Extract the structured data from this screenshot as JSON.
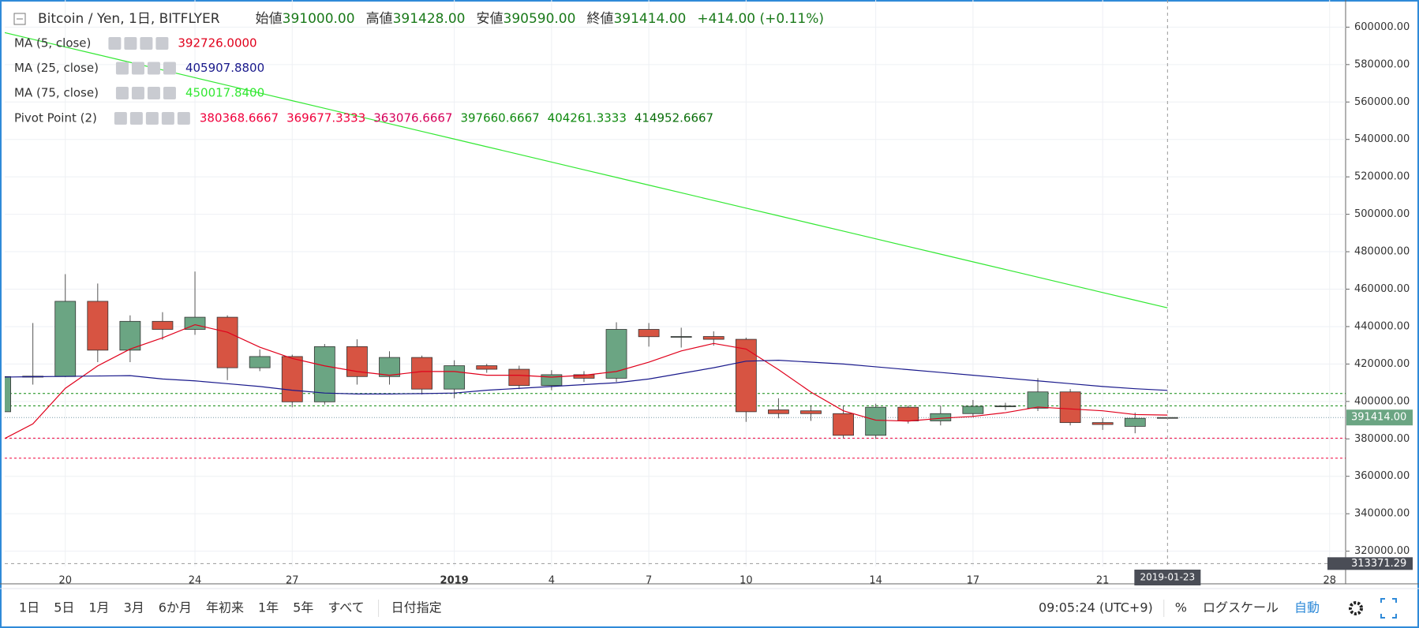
{
  "header": {
    "symbol": "Bitcoin / Yen, 1日, BITFLYER",
    "ohlc": [
      {
        "label": "始値",
        "value": "391000.00"
      },
      {
        "label": "高値",
        "value": "391428.00"
      },
      {
        "label": "安値",
        "value": "390590.00"
      },
      {
        "label": "終値",
        "value": "391414.00"
      }
    ],
    "change": "+414.00 (+0.11%)"
  },
  "indicators": [
    {
      "name": "MA (5, close)",
      "value": "392726.0000",
      "color": "#e0001b"
    },
    {
      "name": "MA (25, close)",
      "value": "405907.8800",
      "color": "#1a1a8c"
    },
    {
      "name": "MA (75, close)",
      "value": "450017.8400",
      "color": "#33e833"
    }
  ],
  "chart_data": {
    "type": "candlestick",
    "categories": [
      null,
      null,
      "20",
      null,
      null,
      null,
      "24",
      null,
      null,
      "27",
      null,
      null,
      null,
      null,
      "2019",
      null,
      null,
      "4",
      null,
      null,
      "7",
      null,
      null,
      "10",
      null,
      null,
      null,
      "14",
      null,
      null,
      "17",
      null,
      null,
      null,
      "21",
      null,
      null,
      null,
      null,
      null,
      null,
      "28"
    ],
    "open": [
      394500,
      413000,
      413300,
      453500,
      427400,
      442800,
      438500,
      445000,
      418000,
      424000,
      399800,
      429300,
      413300,
      423500,
      406600,
      419100,
      417200,
      408500,
      414300,
      412400,
      438500,
      434600,
      434700,
      433200,
      395500,
      395000,
      393500,
      381900,
      396900,
      389600,
      393500,
      397400,
      396400,
      405100,
      388700,
      386700,
      391000,
      null,
      null,
      null,
      null,
      null
    ],
    "high": [
      418000,
      441900,
      468000,
      463000,
      446000,
      447700,
      469400,
      446000,
      427800,
      425000,
      430700,
      433200,
      426800,
      424500,
      422000,
      420100,
      419100,
      416700,
      416200,
      442300,
      441900,
      439400,
      437500,
      434100,
      401700,
      397900,
      397900,
      398800,
      397900,
      397900,
      400800,
      399300,
      412400,
      406600,
      391100,
      394000,
      391428,
      null,
      null,
      null,
      null,
      null
    ],
    "low": [
      390000,
      409000,
      413000,
      421000,
      421000,
      433000,
      435600,
      411400,
      416200,
      396900,
      398300,
      409000,
      409000,
      403700,
      401700,
      415300,
      406600,
      406000,
      410400,
      410400,
      429300,
      428800,
      429800,
      389100,
      391000,
      389600,
      380400,
      380000,
      388200,
      387200,
      391600,
      395400,
      394900,
      387200,
      384800,
      383000,
      390590,
      null,
      null,
      null,
      null,
      null
    ],
    "close": [
      413300,
      413500,
      453500,
      427400,
      442800,
      438500,
      445000,
      418000,
      424000,
      399800,
      429300,
      413300,
      423500,
      406600,
      419100,
      417200,
      408500,
      414300,
      412400,
      438500,
      434600,
      434700,
      433200,
      394500,
      393500,
      393500,
      381900,
      396900,
      389600,
      393500,
      397400,
      397600,
      405100,
      388700,
      387700,
      391000,
      391414,
      null,
      null,
      null,
      null,
      null
    ],
    "up_color": "#6ba583",
    "down_color": "#d75442",
    "series": [
      {
        "name": "MA (5, close)",
        "color": "#e0001b",
        "values": [
          379000,
          388000,
          407000,
          419000,
          428000,
          434000,
          441000,
          437000,
          429000,
          423000,
          419000,
          416000,
          414000,
          416000,
          416000,
          414000,
          414000,
          413000,
          414000,
          416000,
          421000,
          427000,
          431000,
          428000,
          417000,
          405000,
          395000,
          390000,
          389500,
          391000,
          392000,
          394000,
          397000,
          396000,
          395000,
          393000,
          392726,
          null,
          null,
          null,
          null,
          null
        ]
      },
      {
        "name": "MA (25, close)",
        "color": "#1a1a8c",
        "values": [
          413000,
          413200,
          413400,
          413600,
          413800,
          412000,
          411000,
          409500,
          408000,
          406000,
          404500,
          404000,
          404000,
          404200,
          404500,
          406000,
          407000,
          408000,
          409000,
          410000,
          412000,
          415000,
          418000,
          421500,
          422000,
          421000,
          420000,
          418500,
          417000,
          415500,
          414000,
          412500,
          411000,
          409500,
          408000,
          406800,
          405907.88,
          null,
          null,
          null,
          null,
          null
        ]
      },
      {
        "name": "MA (75, close)",
        "color": "#33e833",
        "values": [
          597600,
          593500,
          589400,
          585300,
          581200,
          577100,
          573000,
          568900,
          564800,
          560700,
          556600,
          552500,
          548400,
          544300,
          540200,
          536100,
          532000,
          527900,
          523800,
          519700,
          515600,
          511500,
          507400,
          503300,
          499200,
          495100,
          491000,
          486900,
          482800,
          478700,
          474600,
          470500,
          466400,
          462300,
          458200,
          454100,
          450017.84,
          null,
          null,
          null,
          null,
          null
        ]
      }
    ],
    "pivot": {
      "name": "Pivot Point (2)",
      "levels": [
        {
          "value": 380368.6667,
          "color": "#f0003c",
          "line": true
        },
        {
          "value": 369677.3333,
          "color": "#f0003c",
          "line": true
        },
        {
          "value": 363076.6667,
          "color": "#d6005a",
          "line": false
        },
        {
          "value": 397660.6667,
          "color": "#0f8a0f",
          "line": true
        },
        {
          "value": 404261.3333,
          "color": "#0f8a0f",
          "line": true
        },
        {
          "value": 414952.6667,
          "color": "#0a6e0a",
          "line": false
        }
      ]
    },
    "ylim": [
      312250,
      614500
    ],
    "yticks": [
      {
        "value": 320000,
        "label": "320000.00"
      },
      {
        "value": 340000,
        "label": "340000.00"
      },
      {
        "value": 360000,
        "label": "360000.00"
      },
      {
        "value": 380000,
        "label": "380000.00"
      },
      {
        "value": 400000,
        "label": "400000.00"
      },
      {
        "value": 420000,
        "label": "420000.00"
      },
      {
        "value": 440000,
        "label": "440000.00"
      },
      {
        "value": 460000,
        "label": "460000.00"
      },
      {
        "value": 480000,
        "label": "480000.00"
      },
      {
        "value": 500000,
        "label": "500000.00"
      },
      {
        "value": 520000,
        "label": "520000.00"
      },
      {
        "value": 540000,
        "label": "540000.00"
      },
      {
        "value": 560000,
        "label": "560000.00"
      },
      {
        "value": 580000,
        "label": "580000.00"
      },
      {
        "value": 600000,
        "label": "600000.00"
      }
    ],
    "grid": true,
    "last_price": {
      "value": 391414,
      "label": "391414.00"
    },
    "cursor_price": {
      "value": 313371.29,
      "label": "313371.29"
    },
    "cursor_date": "2019-01-23"
  },
  "toolbar": {
    "ranges": [
      "1日",
      "5日",
      "1月",
      "3月",
      "6か月",
      "年初来",
      "1年",
      "5年",
      "すべて"
    ],
    "goto": "日付指定",
    "clock": "09:05:24 (UTC+9)",
    "percent": "%",
    "log": "ログスケール",
    "auto": "自動"
  }
}
